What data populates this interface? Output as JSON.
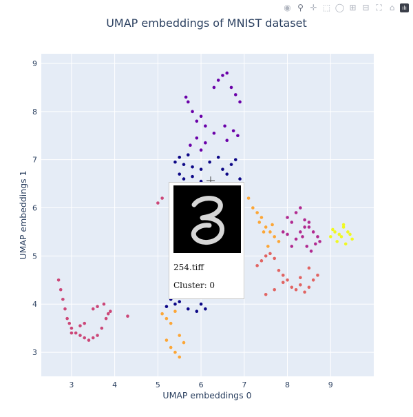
{
  "toolbar": {
    "buttons": [
      {
        "icon": "camera-icon",
        "name": "download-plot-button"
      },
      {
        "icon": "zoom-icon",
        "name": "zoom-button"
      },
      {
        "icon": "pan-icon",
        "name": "pan-button"
      },
      {
        "icon": "box-select-icon",
        "name": "box-select-button"
      },
      {
        "icon": "lasso-select-icon",
        "name": "lasso-select-button"
      },
      {
        "icon": "zoom-in-icon",
        "name": "zoom-in-button"
      },
      {
        "icon": "zoom-out-icon",
        "name": "zoom-out-button"
      },
      {
        "icon": "autoscale-icon",
        "name": "autoscale-button"
      },
      {
        "icon": "reset-axes-icon",
        "name": "reset-axes-button"
      },
      {
        "icon": "plotly-logo-icon",
        "name": "plotly-logo"
      }
    ]
  },
  "hover": {
    "filename": "254.tiff",
    "cluster": "Cluster: 0"
  },
  "chart_data": {
    "type": "scatter",
    "title": "UMAP embeddings of MNIST dataset",
    "xlabel": "UMAP embeddings 0",
    "ylabel": "UMAP embeddings 1",
    "xlim": [
      2.3,
      10.0
    ],
    "ylim": [
      2.5,
      9.2
    ],
    "xticks": [
      3,
      4,
      5,
      6,
      7,
      8,
      9
    ],
    "yticks": [
      3,
      4,
      5,
      6,
      7,
      8,
      9
    ],
    "grid": true,
    "background": "#e5ecf6",
    "clusters": [
      {
        "color": "#0d0887",
        "x": [
          5.4,
          5.5,
          5.6,
          5.7,
          5.8,
          6.0,
          6.2,
          6.4,
          6.6,
          6.7,
          6.8,
          5.5,
          5.6,
          5.8,
          6.0,
          6.3,
          6.5,
          6.9,
          5.2,
          5.4,
          5.7,
          5.9,
          6.1,
          5.3,
          5.5,
          6.0
        ],
        "y": [
          6.95,
          7.05,
          6.9,
          7.1,
          6.85,
          6.8,
          6.95,
          7.05,
          6.7,
          6.9,
          7.0,
          6.7,
          6.6,
          6.65,
          6.55,
          6.5,
          6.8,
          6.6,
          3.95,
          4.0,
          3.9,
          3.85,
          3.9,
          4.1,
          4.05,
          4.0
        ]
      },
      {
        "color": "#6a00a8",
        "x": [
          5.65,
          5.7,
          5.8,
          5.9,
          6.0,
          6.1,
          6.3,
          6.4,
          6.5,
          6.6,
          6.7,
          6.8,
          6.9,
          6.85,
          6.75,
          6.6,
          6.55,
          5.75,
          5.9,
          6.0,
          6.1,
          6.3
        ],
        "y": [
          8.3,
          8.2,
          8.0,
          7.8,
          7.9,
          7.7,
          8.5,
          8.65,
          8.75,
          8.8,
          8.5,
          8.35,
          8.2,
          7.5,
          7.6,
          7.4,
          7.7,
          7.3,
          7.45,
          7.2,
          7.35,
          7.55
        ]
      },
      {
        "color": "#b12a90",
        "x": [
          8.0,
          8.1,
          8.2,
          8.3,
          8.4,
          8.5,
          8.6,
          8.7,
          8.75,
          8.1,
          8.2,
          8.35,
          8.45,
          8.55,
          8.65,
          8.3,
          8.4,
          8.5,
          7.9,
          8.0
        ],
        "y": [
          5.8,
          5.7,
          5.9,
          6.0,
          5.75,
          5.6,
          5.5,
          5.4,
          5.3,
          5.2,
          5.35,
          5.4,
          5.2,
          5.1,
          5.25,
          5.5,
          5.6,
          5.7,
          5.5,
          5.45
        ]
      },
      {
        "color": "#cc4778",
        "x": [
          2.7,
          2.75,
          2.8,
          2.85,
          2.9,
          3.0,
          3.1,
          3.2,
          3.3,
          3.4,
          3.5,
          3.6,
          3.7,
          3.8,
          3.9,
          3.5,
          3.6,
          3.75,
          3.85,
          3.3,
          3.2,
          3.0,
          2.95,
          4.3,
          5.0,
          5.1
        ],
        "y": [
          4.5,
          4.3,
          4.1,
          3.9,
          3.7,
          3.5,
          3.4,
          3.35,
          3.3,
          3.25,
          3.3,
          3.35,
          3.5,
          3.7,
          3.85,
          3.9,
          3.95,
          4.0,
          3.8,
          3.6,
          3.55,
          3.4,
          3.6,
          3.75,
          6.1,
          6.2
        ]
      },
      {
        "color": "#e16462",
        "x": [
          7.3,
          7.4,
          7.5,
          7.6,
          7.7,
          7.8,
          7.9,
          8.0,
          8.1,
          8.2,
          8.3,
          8.4,
          8.5,
          8.6,
          8.7,
          7.5,
          7.7,
          7.9,
          8.3,
          8.5
        ],
        "y": [
          4.8,
          4.9,
          5.0,
          5.05,
          4.95,
          4.7,
          4.6,
          4.5,
          4.35,
          4.3,
          4.4,
          4.25,
          4.35,
          4.5,
          4.6,
          4.2,
          4.3,
          4.45,
          4.55,
          4.75
        ]
      },
      {
        "color": "#fca636",
        "x": [
          7.1,
          7.2,
          7.3,
          7.4,
          7.5,
          7.6,
          7.7,
          7.8,
          7.35,
          7.45,
          7.55,
          7.65,
          5.1,
          5.2,
          5.3,
          5.4,
          5.3,
          5.4,
          5.5,
          5.6,
          5.2,
          5.5
        ],
        "y": [
          6.2,
          6.0,
          5.9,
          5.8,
          5.6,
          5.5,
          5.4,
          5.3,
          5.7,
          5.5,
          5.2,
          5.65,
          3.8,
          3.7,
          3.6,
          3.85,
          3.1,
          3.0,
          2.9,
          3.2,
          3.25,
          3.35
        ]
      },
      {
        "color": "#f0f921",
        "x": [
          9.0,
          9.1,
          9.2,
          9.3,
          9.4,
          9.5,
          9.15,
          9.25,
          9.35,
          9.45,
          9.05,
          9.3
        ],
        "y": [
          5.4,
          5.5,
          5.45,
          5.6,
          5.5,
          5.35,
          5.3,
          5.4,
          5.25,
          5.45,
          5.55,
          5.65
        ]
      }
    ]
  }
}
